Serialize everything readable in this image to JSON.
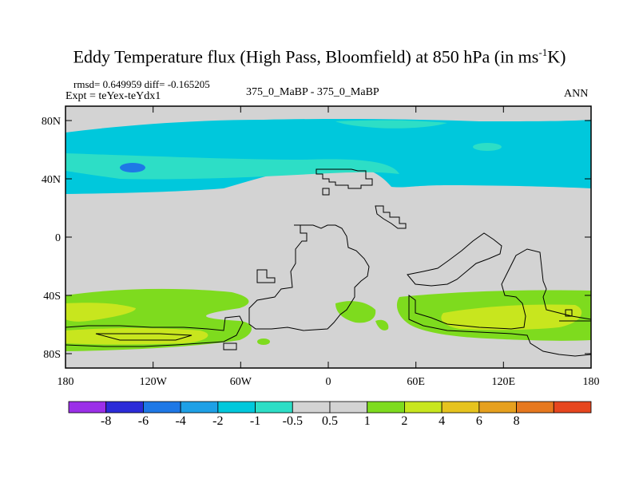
{
  "title": {
    "main": "Eddy Temperature flux (High Pass, Bloomfield) at 850 hPa (in ms",
    "superscript": "-1",
    "unit_end": "K)"
  },
  "stats": {
    "rmsd_diff": "rmsd= 0.649959 diff= -0.165205",
    "expt": "Expt = teYex-teYdx1",
    "case": "375_0_MaBP - 375_0_MaBP",
    "period": "ANN"
  },
  "axes": {
    "lat_ticks": [
      "80N",
      "40N",
      "0",
      "40S",
      "80S"
    ],
    "lon_ticks": [
      "180",
      "120W",
      "60W",
      "0",
      "60E",
      "120E",
      "180"
    ]
  },
  "colorbar": {
    "colors": [
      "#9B30E8",
      "#2B2BD8",
      "#1E78E6",
      "#1EA0E6",
      "#00C8DC",
      "#2DDEC6",
      "#D3D3D3",
      "#D3D3D3",
      "#7EDB1E",
      "#C8E61E",
      "#E6C31E",
      "#E6A01E",
      "#E6781E",
      "#E6461E"
    ],
    "labels": [
      "-8",
      "-6",
      "-4",
      "-2",
      "-1",
      "-0.5",
      "0.5",
      "1",
      "2",
      "4",
      "6",
      "8"
    ]
  },
  "palette": {
    "background": "#D3D3D3",
    "cyan_light": "#00C8DC",
    "cyan_pale": "#2DDEC6",
    "blue": "#1EA0E6",
    "green": "#7EDB1E",
    "yellow": "#C8E61E",
    "coast": "#000000"
  }
}
